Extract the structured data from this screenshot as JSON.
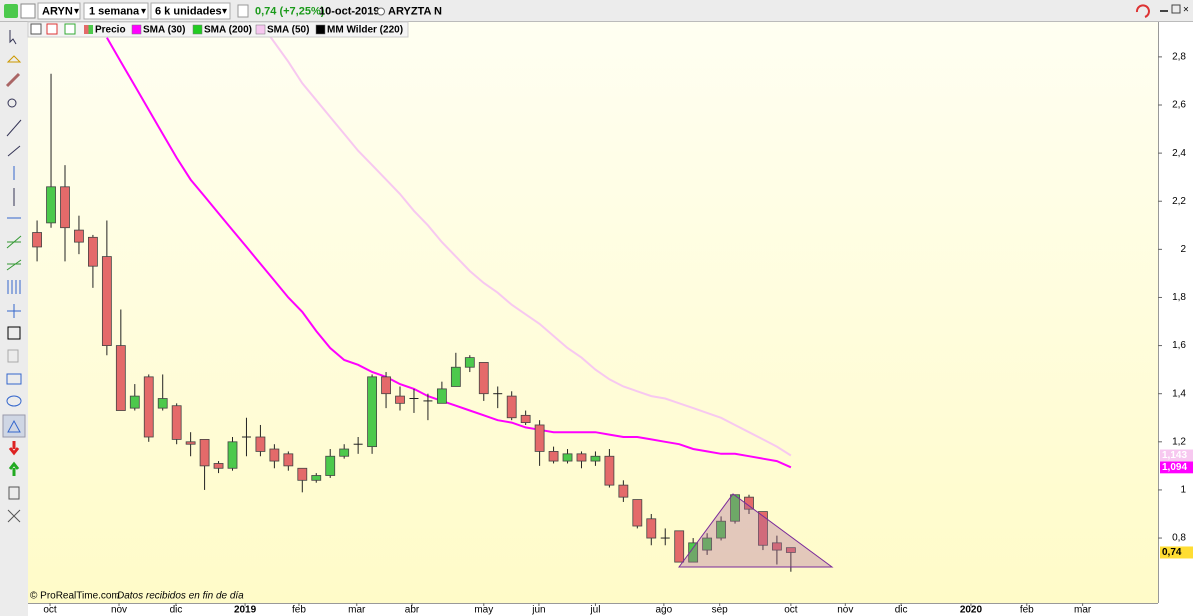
{
  "toolbar": {
    "symbol": "ARYN",
    "period": "1 semana",
    "units": "6 k unidades",
    "last_change": "0,74 (+7,25%)",
    "date": "10-oct-2019",
    "name": "ARYZTA N"
  },
  "footer": {
    "source": "© ProRealTime.com",
    "note": "Datos recibidos en fin de día"
  },
  "chart_data": {
    "type": "candlestick",
    "categories": [
      null,
      null,
      null,
      null,
      null,
      null,
      null,
      null,
      null,
      null,
      null,
      null,
      null,
      null,
      null,
      null,
      null,
      null,
      null,
      null,
      null,
      null,
      null,
      null,
      null,
      null,
      null,
      null,
      null,
      null,
      null,
      null,
      null,
      null,
      null,
      null,
      null,
      null,
      null,
      null,
      null,
      null,
      null,
      null,
      null,
      null,
      null,
      null,
      null,
      null,
      null,
      null,
      null,
      null,
      null
    ],
    "open": [
      2.07,
      2.11,
      2.26,
      2.08,
      2.05,
      1.97,
      1.6,
      1.34,
      1.47,
      1.34,
      1.35,
      1.2,
      1.21,
      1.11,
      1.09,
      1.22,
      1.22,
      1.17,
      1.15,
      1.09,
      1.04,
      1.06,
      1.14,
      1.19,
      1.18,
      1.47,
      1.39,
      1.38,
      1.37,
      1.36,
      1.43,
      1.51,
      1.53,
      1.4,
      1.39,
      1.31,
      1.27,
      1.16,
      1.12,
      1.15,
      1.12,
      1.14,
      1.02,
      0.96,
      0.88,
      0.8,
      0.83,
      0.7,
      0.75,
      0.8,
      0.87,
      0.97,
      0.91,
      0.78,
      0.76
    ],
    "high": [
      2.12,
      2.73,
      2.35,
      2.14,
      2.06,
      2.12,
      1.75,
      1.44,
      1.48,
      1.48,
      1.36,
      1.24,
      1.21,
      1.12,
      1.22,
      1.3,
      1.27,
      1.19,
      1.16,
      1.09,
      1.07,
      1.17,
      1.19,
      1.22,
      1.48,
      1.49,
      1.43,
      1.42,
      1.4,
      1.45,
      1.57,
      1.56,
      1.53,
      1.43,
      1.41,
      1.33,
      1.29,
      1.18,
      1.17,
      1.16,
      1.16,
      1.17,
      1.04,
      0.96,
      0.9,
      0.84,
      0.83,
      0.8,
      0.82,
      0.89,
      0.98,
      0.98,
      0.91,
      0.81,
      0.76
    ],
    "low": [
      1.95,
      2.09,
      1.95,
      1.98,
      1.84,
      1.56,
      1.33,
      1.33,
      1.2,
      1.33,
      1.19,
      1.14,
      1.0,
      1.07,
      1.08,
      1.14,
      1.14,
      1.09,
      1.08,
      0.99,
      1.03,
      1.05,
      1.13,
      1.15,
      1.15,
      1.34,
      1.33,
      1.32,
      1.29,
      1.36,
      1.43,
      1.49,
      1.37,
      1.34,
      1.29,
      1.27,
      1.1,
      1.11,
      1.11,
      1.09,
      1.1,
      1.01,
      0.95,
      0.84,
      0.77,
      0.77,
      0.7,
      0.7,
      0.73,
      0.79,
      0.86,
      0.9,
      0.75,
      0.69,
      0.66
    ],
    "close": [
      2.01,
      2.26,
      2.09,
      2.03,
      1.93,
      1.6,
      1.33,
      1.39,
      1.22,
      1.38,
      1.21,
      1.19,
      1.1,
      1.09,
      1.2,
      1.22,
      1.16,
      1.12,
      1.1,
      1.04,
      1.06,
      1.14,
      1.17,
      1.19,
      1.47,
      1.4,
      1.36,
      1.38,
      1.37,
      1.42,
      1.51,
      1.55,
      1.4,
      1.4,
      1.3,
      1.28,
      1.16,
      1.12,
      1.15,
      1.12,
      1.14,
      1.02,
      0.97,
      0.85,
      0.8,
      0.8,
      0.7,
      0.78,
      0.8,
      0.87,
      0.98,
      0.92,
      0.77,
      0.75,
      0.74
    ],
    "close_labels": [
      null,
      null,
      null,
      null,
      null,
      null,
      null,
      null,
      null,
      null,
      null,
      null,
      null,
      null,
      null,
      null,
      null,
      null,
      null,
      null,
      null,
      null,
      null,
      null,
      null,
      null,
      null,
      null,
      null,
      null,
      null,
      null,
      null,
      null,
      null,
      null,
      null,
      null,
      null,
      null,
      null,
      null,
      null,
      null,
      null,
      null,
      null,
      null,
      null,
      null,
      null,
      null,
      null,
      null,
      "0,74"
    ],
    "up_color": "#4cc94c",
    "down_color": "#e46a6a",
    "last_label_color": "#ffdd33",
    "series": [
      {
        "name": "Precio"
      },
      {
        "name": "SMA (30)",
        "color": "#ff00ff",
        "values": [
          null,
          null,
          null,
          null,
          null,
          2.88,
          2.78,
          2.68,
          2.58,
          2.48,
          2.38,
          2.29,
          2.22,
          2.15,
          2.08,
          2.01,
          1.94,
          1.87,
          1.8,
          1.74,
          1.66,
          1.59,
          1.54,
          1.52,
          1.49,
          1.47,
          1.44,
          1.42,
          1.39,
          1.37,
          1.35,
          1.33,
          1.31,
          1.29,
          1.28,
          1.26,
          1.25,
          1.24,
          1.24,
          1.24,
          1.24,
          1.23,
          1.22,
          1.22,
          1.21,
          1.2,
          1.19,
          1.17,
          1.16,
          1.15,
          1.15,
          1.14,
          1.13,
          1.12,
          1.094
        ],
        "value_labels": [
          null,
          null,
          null,
          null,
          null,
          null,
          null,
          null,
          null,
          null,
          null,
          null,
          null,
          null,
          null,
          null,
          null,
          null,
          null,
          null,
          null,
          null,
          null,
          null,
          null,
          null,
          null,
          null,
          null,
          null,
          null,
          null,
          null,
          null,
          null,
          null,
          null,
          null,
          null,
          null,
          null,
          null,
          null,
          null,
          null,
          null,
          null,
          null,
          null,
          null,
          null,
          null,
          null,
          null,
          "1,094"
        ]
      },
      {
        "name": "SMA (200)",
        "color": "#22cc22"
      },
      {
        "name": "SMA (50)",
        "color": "#f7c8f0",
        "values": [
          null,
          null,
          null,
          null,
          null,
          null,
          null,
          null,
          null,
          null,
          null,
          null,
          null,
          null,
          null,
          null,
          2.94,
          2.86,
          2.78,
          2.69,
          2.62,
          2.55,
          2.48,
          2.41,
          2.35,
          2.29,
          2.23,
          2.16,
          2.1,
          2.03,
          1.97,
          1.91,
          1.86,
          1.82,
          1.77,
          1.73,
          1.69,
          1.64,
          1.59,
          1.55,
          1.5,
          1.46,
          1.43,
          1.41,
          1.39,
          1.38,
          1.36,
          1.34,
          1.32,
          1.3,
          1.27,
          1.24,
          1.21,
          1.18,
          1.143
        ],
        "value_labels": [
          null,
          null,
          null,
          null,
          null,
          null,
          null,
          null,
          null,
          null,
          null,
          null,
          null,
          null,
          null,
          null,
          null,
          null,
          null,
          null,
          null,
          null,
          null,
          null,
          null,
          null,
          null,
          null,
          null,
          null,
          null,
          null,
          null,
          null,
          null,
          null,
          null,
          null,
          null,
          null,
          null,
          null,
          null,
          null,
          null,
          null,
          null,
          null,
          null,
          null,
          null,
          null,
          null,
          null,
          "1,143"
        ]
      },
      {
        "name": "MM Wilder (220)",
        "color": "#000000"
      }
    ],
    "xlim": [
      -0.65,
      80.3
    ],
    "xticks": [
      {
        "value": 0.93,
        "label": "oct"
      },
      {
        "value": 5.87,
        "label": "nov"
      },
      {
        "value": 9.95,
        "label": "dic"
      },
      {
        "value": 14.9,
        "label": "2019"
      },
      {
        "value": 18.76,
        "label": "feb"
      },
      {
        "value": 22.9,
        "label": "mar"
      },
      {
        "value": 26.86,
        "label": "abr"
      },
      {
        "value": 32.0,
        "label": "may"
      },
      {
        "value": 35.95,
        "label": "jun"
      },
      {
        "value": 40.0,
        "label": "jul"
      },
      {
        "value": 44.9,
        "label": "ago"
      },
      {
        "value": 48.9,
        "label": "sep"
      },
      {
        "value": 54.0,
        "label": "oct"
      },
      {
        "value": 57.9,
        "label": "nov"
      },
      {
        "value": 61.9,
        "label": "dic"
      },
      {
        "value": 66.9,
        "label": "2020"
      },
      {
        "value": 70.9,
        "label": "feb"
      },
      {
        "value": 74.9,
        "label": "mar"
      }
    ],
    "ylim": [
      0.53,
      2.945
    ],
    "yticks": [
      {
        "value": 2.8,
        "label": "2,8"
      },
      {
        "value": 2.6,
        "label": "2,6"
      },
      {
        "value": 2.4,
        "label": "2,4"
      },
      {
        "value": 2.2,
        "label": "2,2"
      },
      2,
      {
        "value": 1.8,
        "label": "1,8"
      },
      {
        "value": 1.6,
        "label": "1,6"
      },
      {
        "value": 1.4,
        "label": "1,4"
      },
      {
        "value": 1.2,
        "label": "1,2"
      },
      1,
      {
        "value": 0.8,
        "label": "0,8"
      }
    ],
    "grid": false
  }
}
